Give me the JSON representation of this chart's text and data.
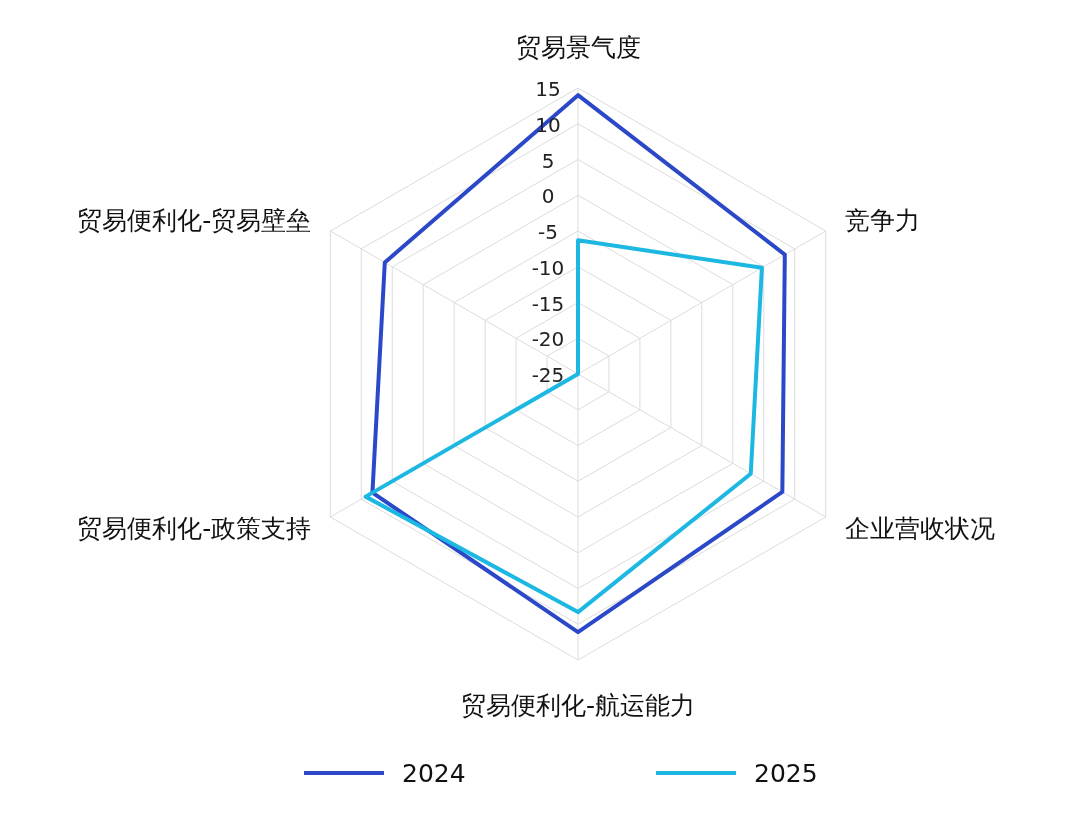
{
  "chart_data": {
    "type": "radar",
    "categories": [
      "贸易景气度",
      "竞争力",
      "企业营收状况",
      "贸易便利化-航运能力",
      "贸易便利化-政策支持",
      "贸易便利化-贸易壁垒"
    ],
    "series": [
      {
        "name": "2024",
        "color": "#2b48c8",
        "values": [
          14,
          8.4,
          8,
          11.1,
          8.2,
          6.2
        ]
      },
      {
        "name": "2025",
        "color": "#1db8e2",
        "values": [
          -6.3,
          4.7,
          2.9,
          8.3,
          9.3,
          -25
        ]
      }
    ],
    "ylim": [
      -25,
      15
    ],
    "yticks": [
      -25,
      -20,
      -15,
      -10,
      -5,
      0,
      5,
      10,
      15
    ],
    "grid": true,
    "legend": "bottom",
    "line_style": "solid",
    "marker": "none"
  }
}
